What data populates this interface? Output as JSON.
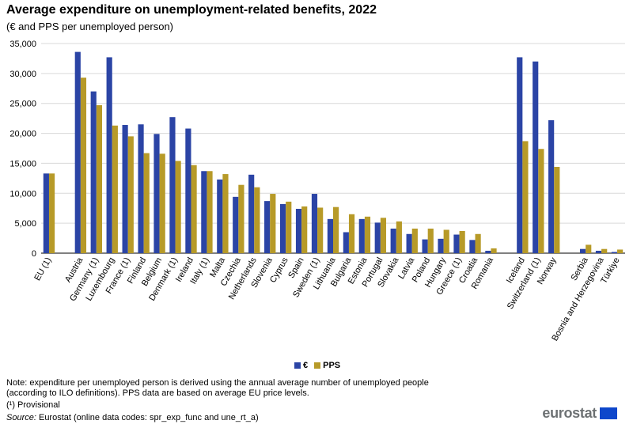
{
  "header": {
    "title": "Average expenditure on unemployment-related benefits, 2022",
    "subtitle": "(€ and PPS per unemployed  person)"
  },
  "legend": {
    "euro_label": "€",
    "pps_label": "PPS"
  },
  "colors": {
    "euro": "#2b44a5",
    "pps": "#b79a28",
    "grid": "#d9d9d9",
    "axis": "#000000"
  },
  "notes": {
    "line1": "Note: expenditure per unemployed person is derived using the annual average number of unemployed people",
    "line2": "(according to ILO definitions). PPS data are based on average EU price levels.",
    "provisional": "(¹) Provisional",
    "source_label": "Source:",
    "source_text": " Eurostat (online data codes: spr_exp_func and une_rt_a)"
  },
  "logo": {
    "text": "eurostat",
    "icon": "eu-flag-icon"
  },
  "chart_data": {
    "type": "bar",
    "title": "Average expenditure on unemployment-related benefits, 2022",
    "subtitle": "(€ and PPS per unemployed  person)",
    "ylim": [
      0,
      35000
    ],
    "yticks": [
      "0",
      "5,000",
      "10,000",
      "15,000",
      "20,000",
      "25,000",
      "30,000",
      "35,000"
    ],
    "grid": true,
    "legend_position": "bottom-center",
    "groups": [
      [
        "EU (1)"
      ],
      [
        "Austria",
        "Germany (1)",
        "Luxembourg",
        "France (1)",
        "Finland",
        "Belgium",
        "Denmark (1)",
        "Ireland",
        "Italy (1)",
        "Malta",
        "Czechia",
        "Netherlands",
        "Slovenia",
        "Cyprus",
        "Spain",
        "Sweden (1)",
        "Lithuania",
        "Bulgaria",
        "Estonia",
        "Portugal",
        "Slovakia",
        "Latvia",
        "Poland",
        "Hungary",
        "Greece (1)",
        "Croatia",
        "Romania"
      ],
      [
        "Iceland",
        "Switzerland (1)",
        "Norway"
      ],
      [
        "Serbia",
        "Bosnia and Herzegovina",
        "Türkiye"
      ]
    ],
    "categories": [
      "EU (1)",
      "Austria",
      "Germany (1)",
      "Luxembourg",
      "France (1)",
      "Finland",
      "Belgium",
      "Denmark (1)",
      "Ireland",
      "Italy (1)",
      "Malta",
      "Czechia",
      "Netherlands",
      "Slovenia",
      "Cyprus",
      "Spain",
      "Sweden (1)",
      "Lithuania",
      "Bulgaria",
      "Estonia",
      "Portugal",
      "Slovakia",
      "Latvia",
      "Poland",
      "Hungary",
      "Greece (1)",
      "Croatia",
      "Romania",
      "Iceland",
      "Switzerland (1)",
      "Norway",
      "Serbia",
      "Bosnia and Herzegovina",
      "Türkiye"
    ],
    "series": [
      {
        "name": "€",
        "values": [
          13300,
          33600,
          27000,
          32700,
          21400,
          21500,
          19900,
          22700,
          20800,
          13700,
          12300,
          9400,
          13100,
          8700,
          8200,
          7400,
          9900,
          5700,
          3500,
          5700,
          5100,
          4100,
          3200,
          2300,
          2400,
          3100,
          2200,
          400,
          32700,
          32000,
          22200,
          700,
          400,
          200
        ]
      },
      {
        "name": "PPS",
        "values": [
          13300,
          29300,
          24700,
          21300,
          19500,
          16700,
          16600,
          15400,
          14700,
          13700,
          13200,
          11400,
          11000,
          9900,
          8600,
          7800,
          7600,
          7700,
          6500,
          6100,
          5900,
          5300,
          4100,
          4100,
          3900,
          3700,
          3200,
          800,
          18700,
          17400,
          14400,
          1400,
          700,
          600
        ]
      }
    ]
  }
}
